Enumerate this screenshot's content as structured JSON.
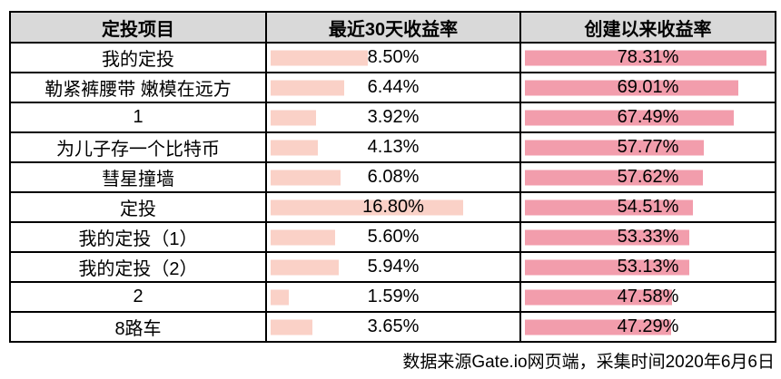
{
  "colors": {
    "background": "#FFFFFF",
    "border": "#000000",
    "header_bg": "#D9D9D9",
    "bar_30d": "#FAD1C7",
    "bar_since": "#F29DAC",
    "text": "#000000"
  },
  "footer": {
    "source_note": "数据来源Gate.io网页端，采集时间2020年6月6日"
  },
  "chart_data": {
    "type": "table",
    "title": "",
    "columns": [
      "定投项目",
      "最近30天收益率",
      "创建以来收益率"
    ],
    "categories": [
      "我的定投",
      "勒紧裤腰带 嫩模在远方",
      "1",
      "为儿子存一个比特币",
      "彗星撞墙",
      "定投",
      "我的定投（1）",
      "我的定投（2）",
      "2",
      "8路车"
    ],
    "series": [
      {
        "name": "最近30天收益率",
        "unit": "%",
        "bar_color": "#FAD1C7",
        "axis_min": 0,
        "axis_max": 22,
        "values": [
          8.5,
          6.44,
          3.92,
          4.13,
          6.08,
          16.8,
          5.6,
          5.94,
          1.59,
          3.65
        ]
      },
      {
        "name": "创建以来收益率",
        "unit": "%",
        "bar_color": "#F29DAC",
        "axis_min": 0,
        "axis_max": 82,
        "values": [
          78.31,
          69.01,
          67.49,
          57.77,
          57.62,
          54.51,
          53.33,
          53.13,
          47.58,
          47.29
        ]
      }
    ],
    "value_format": "0.00%",
    "legend": "none",
    "grid": "table-borders"
  }
}
